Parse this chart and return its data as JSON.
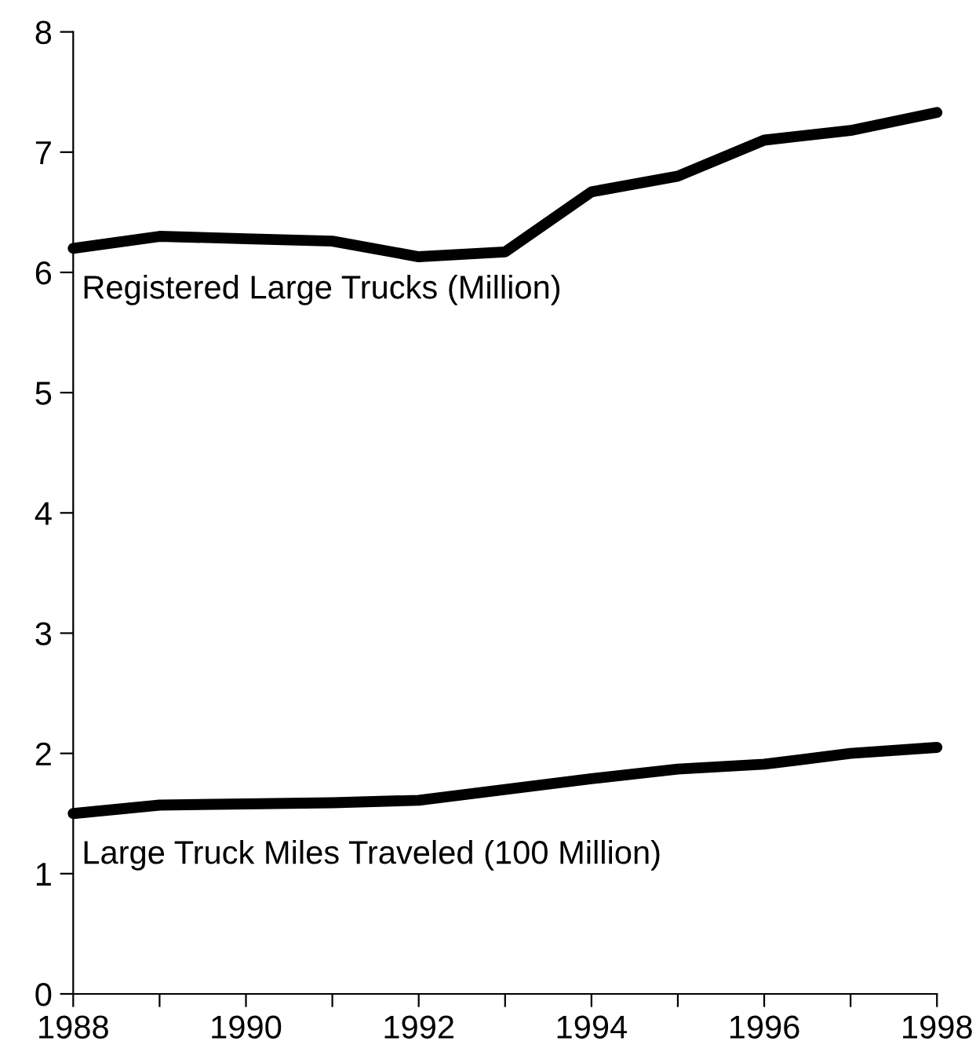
{
  "chart_data": {
    "type": "line",
    "x": [
      1988,
      1989,
      1990,
      1991,
      1992,
      1993,
      1994,
      1995,
      1996,
      1997,
      1998
    ],
    "series": [
      {
        "name": "Registered Large Trucks (Million)",
        "color": "#000000",
        "values": [
          6.2,
          6.3,
          6.28,
          6.26,
          6.13,
          6.17,
          6.67,
          6.8,
          7.1,
          7.18,
          7.33
        ]
      },
      {
        "name": "Large Truck Miles Traveled (100 Million)",
        "color": "#000000",
        "values": [
          1.5,
          1.57,
          1.58,
          1.59,
          1.61,
          1.7,
          1.79,
          1.87,
          1.91,
          2.0,
          2.05
        ]
      }
    ],
    "xlim": [
      1988,
      1998
    ],
    "ylim": [
      0,
      8
    ],
    "xticks": [
      1988,
      {
        "value": 1989,
        "label": null
      },
      1990,
      {
        "value": 1991,
        "label": null
      },
      1992,
      {
        "value": 1993,
        "label": null
      },
      1994,
      {
        "value": 1995,
        "label": null
      },
      1996,
      {
        "value": 1997,
        "label": null
      },
      1998
    ],
    "yticks": [
      0,
      1,
      2,
      3,
      4,
      5,
      6,
      7,
      8
    ],
    "grid": false,
    "legend": false,
    "marker": "none",
    "line_style": "solid"
  }
}
